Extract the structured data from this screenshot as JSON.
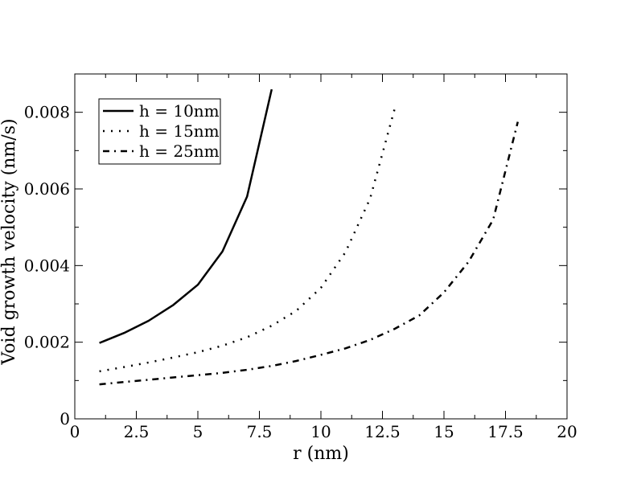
{
  "chart_data": {
    "type": "line",
    "title": "",
    "xlabel": "r (nm)",
    "ylabel": "Void growth velocity (nm/s)",
    "xlim": [
      0,
      20
    ],
    "ylim": [
      0,
      0.009
    ],
    "x_ticks": [
      0,
      2.5,
      5,
      7.5,
      10,
      12.5,
      15,
      17.5,
      20
    ],
    "x_tick_labels": [
      "0",
      "2.5",
      "5",
      "7.5",
      "10",
      "12.5",
      "15",
      "17.5",
      "20"
    ],
    "y_ticks": [
      0,
      0.002,
      0.004,
      0.006,
      0.008
    ],
    "y_tick_labels": [
      "0",
      "0.002",
      "0.004",
      "0.006",
      "0.008"
    ],
    "grid": false,
    "legend_position": "top-left",
    "series": [
      {
        "name": "h = 10nm",
        "style": "solid",
        "x": [
          1,
          2,
          3,
          4,
          5,
          6,
          7,
          8
        ],
        "y": [
          0.00198,
          0.00224,
          0.00256,
          0.00297,
          0.0035,
          0.00437,
          0.0058,
          0.0086
        ]
      },
      {
        "name": "h = 15nm",
        "style": "dotted",
        "x": [
          1,
          2,
          3,
          4,
          5,
          6,
          7,
          8,
          9,
          10,
          11,
          12,
          13
        ],
        "y": [
          0.00124,
          0.00135,
          0.00147,
          0.0016,
          0.00174,
          0.00191,
          0.00213,
          0.00243,
          0.00282,
          0.00342,
          0.00435,
          0.00575,
          0.0081
        ]
      },
      {
        "name": "h = 25nm",
        "style": "dashdot",
        "x": [
          1,
          2,
          3,
          4,
          5,
          6,
          7,
          8,
          9,
          10,
          11,
          12,
          13,
          14,
          15,
          16,
          17,
          18
        ],
        "y": [
          0.0009,
          0.00096,
          0.00102,
          0.00108,
          0.00114,
          0.0012,
          0.00128,
          0.00138,
          0.00151,
          0.00167,
          0.00184,
          0.00206,
          0.00235,
          0.0027,
          0.0033,
          0.0041,
          0.0052,
          0.00775
        ]
      }
    ]
  }
}
